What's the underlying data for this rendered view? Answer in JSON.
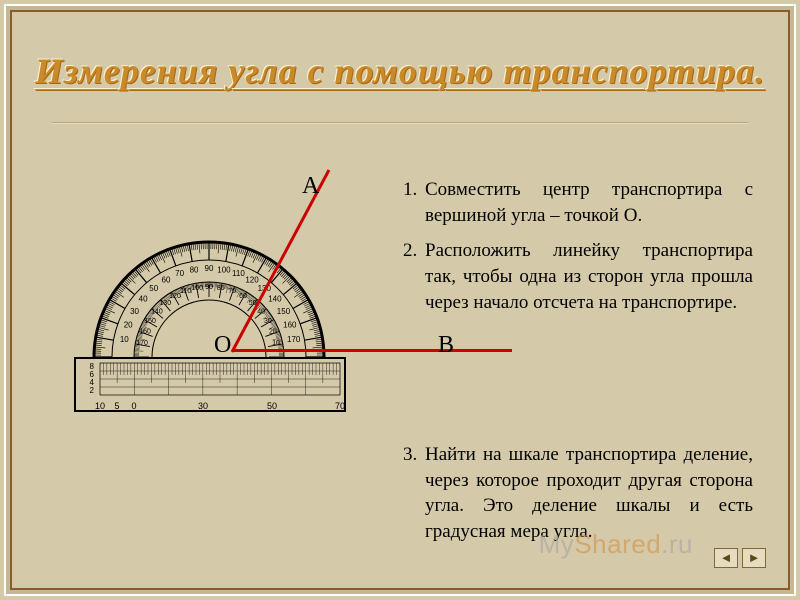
{
  "title": "Измерения угла с помощью транспортира.",
  "labels": {
    "A": "А",
    "O": "О",
    "B": "В"
  },
  "steps": [
    {
      "n": "1.",
      "t": "Совместить центр транспортира с вершиной угла – точкой О."
    },
    {
      "n": "2.",
      "t": "Расположить линейку транспортира так, чтобы одна из сторон угла прошла через начало отсчета на транспортире."
    },
    {
      "n": "3.",
      "t": "Найти на шкале транспортира деление, через которое проходит другая сторона угла. Это деление шкалы и есть градусная мера угла."
    }
  ],
  "ruler": {
    "left_marks": [
      "8",
      "6",
      "4",
      "2"
    ],
    "bottom_marks": [
      "10",
      "5",
      "0",
      "30",
      "50",
      "70"
    ]
  },
  "arc_inner": [
    "160",
    "170",
    "10",
    "20",
    "30",
    "40",
    "50",
    "60",
    "70",
    "80",
    "90",
    "100",
    "110",
    "120",
    "130",
    "140",
    "150",
    "160",
    "170"
  ],
  "arc_outer": [
    "170",
    "160",
    "150",
    "140",
    "130",
    "120",
    "110",
    "100",
    "80",
    "70",
    "60",
    "50",
    "40",
    "30",
    "20",
    "10",
    "160",
    "150"
  ],
  "colors": {
    "bg": "#d4c9a8",
    "frame": "#8b5a2b",
    "title": "#c98a2a",
    "ray": "#cc0000",
    "ink": "#000000"
  },
  "watermark": {
    "my": "My",
    "shared": "Shared",
    "ru": ".ru"
  },
  "nav": {
    "prev": "◄",
    "next": "►"
  }
}
